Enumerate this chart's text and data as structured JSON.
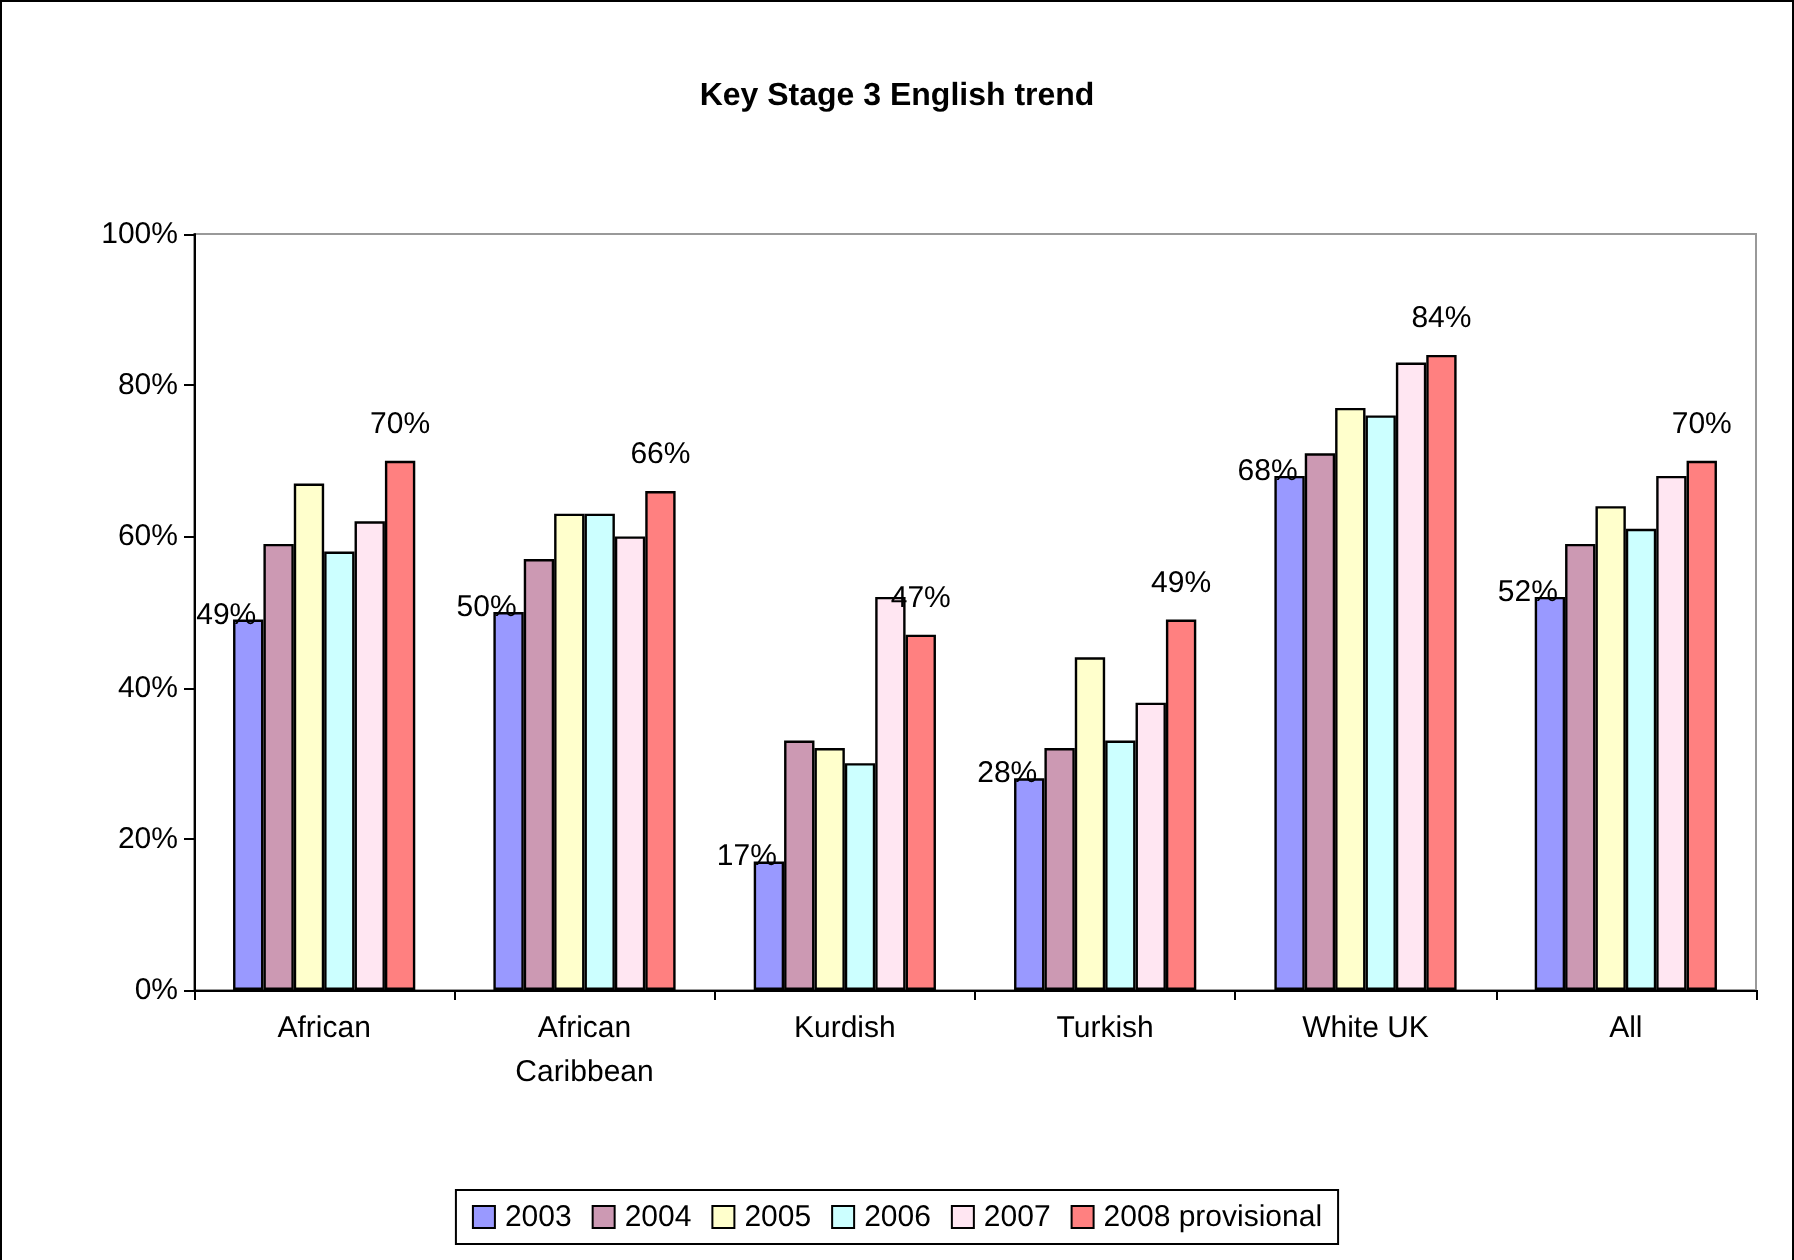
{
  "chart_data": {
    "type": "bar",
    "title": "Key Stage 3 English trend",
    "categories": [
      "African",
      "African\nCaribbean",
      "Kurdish",
      "Turkish",
      "White UK",
      "All"
    ],
    "series": [
      {
        "name": "2003",
        "color": "#9999ff",
        "values": [
          49,
          50,
          17,
          28,
          68,
          52
        ],
        "value_labels": [
          "49%",
          "50%",
          "17%",
          "28%",
          "68%",
          "52%"
        ]
      },
      {
        "name": "2004",
        "color": "#cc99b3",
        "values": [
          59,
          57,
          33,
          32,
          71,
          59
        ]
      },
      {
        "name": "2005",
        "color": "#ffffcc",
        "values": [
          67,
          63,
          32,
          44,
          77,
          64
        ]
      },
      {
        "name": "2006",
        "color": "#ccffff",
        "values": [
          58,
          63,
          30,
          33,
          76,
          61
        ]
      },
      {
        "name": "2007",
        "color": "#ffe6f2",
        "values": [
          62,
          60,
          52,
          38,
          83,
          68
        ]
      },
      {
        "name": "2008 provisional",
        "color": "#ff8080",
        "values": [
          70,
          66,
          47,
          49,
          84,
          70
        ],
        "value_labels": [
          "70%",
          "66%",
          "47%",
          "49%",
          "84%",
          "70%"
        ]
      }
    ],
    "ylim": [
      0,
      100
    ],
    "yticks": [
      {
        "value": 0,
        "label": "0%"
      },
      {
        "value": 20,
        "label": "20%"
      },
      {
        "value": 40,
        "label": "40%"
      },
      {
        "value": 60,
        "label": "60%"
      },
      {
        "value": 80,
        "label": "80%"
      },
      {
        "value": 100,
        "label": "100%"
      }
    ],
    "grid": false,
    "legend": "bottom"
  }
}
